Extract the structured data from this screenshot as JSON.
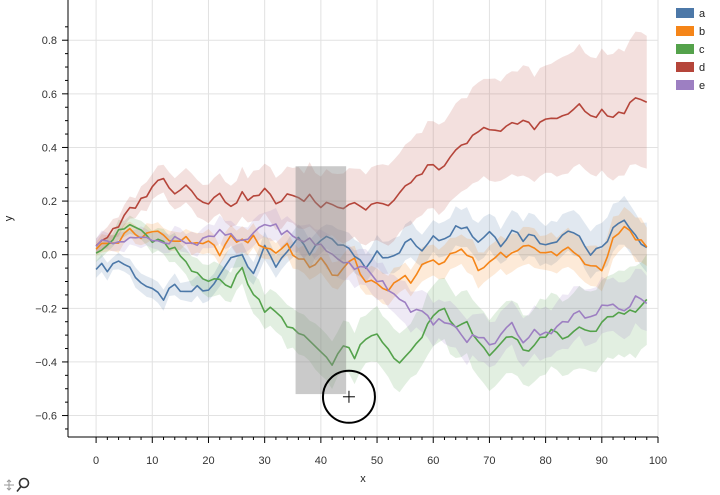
{
  "chart_data": {
    "type": "line",
    "title": "",
    "xlabel": "x",
    "ylabel": "y",
    "xlim": [
      -5,
      100
    ],
    "ylim": [
      -0.68,
      0.95
    ],
    "xticks": [
      0,
      10,
      20,
      30,
      40,
      50,
      60,
      70,
      80,
      90,
      100
    ],
    "yticks": [
      -0.6,
      -0.4,
      -0.2,
      0.0,
      0.2,
      0.4,
      0.6,
      0.8
    ],
    "ytick_labels": [
      "−0.6",
      "−0.4",
      "−0.2",
      "0.0",
      "0.2",
      "0.4",
      "0.6",
      "0.8"
    ],
    "grid": true,
    "legend_position": "top-right",
    "x_step": 1,
    "x_start": 0,
    "series": [
      {
        "name": "a",
        "color": "#4c78a8",
        "anchors": [
          [
            0,
            -0.04
          ],
          [
            2,
            -0.05
          ],
          [
            4,
            -0.02
          ],
          [
            6,
            -0.05
          ],
          [
            8,
            -0.1
          ],
          [
            10,
            -0.14
          ],
          [
            12,
            -0.16
          ],
          [
            14,
            -0.12
          ],
          [
            16,
            -0.15
          ],
          [
            18,
            -0.12
          ],
          [
            20,
            -0.14
          ],
          [
            22,
            -0.08
          ],
          [
            24,
            0.0
          ],
          [
            26,
            0.0
          ],
          [
            28,
            -0.06
          ],
          [
            30,
            0.02
          ],
          [
            32,
            -0.04
          ],
          [
            34,
            0.02
          ],
          [
            36,
            0.05
          ],
          [
            38,
            0.0
          ],
          [
            40,
            0.05
          ],
          [
            42,
            0.06
          ],
          [
            44,
            0.03
          ],
          [
            46,
            0.0
          ],
          [
            48,
            -0.04
          ],
          [
            50,
            0.02
          ],
          [
            52,
            -0.02
          ],
          [
            54,
            0.01
          ],
          [
            56,
            0.06
          ],
          [
            58,
            0.02
          ],
          [
            60,
            0.08
          ],
          [
            62,
            0.05
          ],
          [
            64,
            0.12
          ],
          [
            66,
            0.1
          ],
          [
            68,
            0.05
          ],
          [
            70,
            0.09
          ],
          [
            72,
            0.04
          ],
          [
            74,
            0.1
          ],
          [
            76,
            0.06
          ],
          [
            78,
            0.08
          ],
          [
            80,
            0.03
          ],
          [
            82,
            0.06
          ],
          [
            84,
            0.1
          ],
          [
            86,
            0.07
          ],
          [
            88,
            0.0
          ],
          [
            90,
            0.02
          ],
          [
            92,
            0.1
          ],
          [
            94,
            0.12
          ],
          [
            96,
            0.06
          ],
          [
            98,
            0.04
          ]
        ],
        "band": 0.06
      },
      {
        "name": "b",
        "color": "#f58518",
        "anchors": [
          [
            0,
            0.03
          ],
          [
            2,
            0.04
          ],
          [
            4,
            0.05
          ],
          [
            6,
            0.09
          ],
          [
            8,
            0.06
          ],
          [
            10,
            0.1
          ],
          [
            12,
            0.07
          ],
          [
            14,
            0.04
          ],
          [
            16,
            0.07
          ],
          [
            18,
            0.03
          ],
          [
            20,
            0.04
          ],
          [
            22,
            0.01
          ],
          [
            24,
            0.06
          ],
          [
            26,
            0.05
          ],
          [
            28,
            0.06
          ],
          [
            30,
            0.03
          ],
          [
            32,
            0.01
          ],
          [
            34,
            0.04
          ],
          [
            36,
            -0.02
          ],
          [
            38,
            -0.04
          ],
          [
            40,
            -0.02
          ],
          [
            42,
            -0.08
          ],
          [
            44,
            -0.05
          ],
          [
            46,
            -0.02
          ],
          [
            48,
            -0.1
          ],
          [
            50,
            -0.12
          ],
          [
            52,
            -0.13
          ],
          [
            54,
            -0.08
          ],
          [
            56,
            -0.1
          ],
          [
            58,
            -0.04
          ],
          [
            60,
            -0.02
          ],
          [
            62,
            -0.04
          ],
          [
            64,
            0.02
          ],
          [
            66,
            0.01
          ],
          [
            68,
            -0.06
          ],
          [
            70,
            -0.03
          ],
          [
            72,
            0.01
          ],
          [
            74,
            0.0
          ],
          [
            76,
            0.04
          ],
          [
            78,
            0.01
          ],
          [
            80,
            0.02
          ],
          [
            82,
            0.0
          ],
          [
            84,
            0.02
          ],
          [
            86,
            -0.01
          ],
          [
            88,
            -0.04
          ],
          [
            90,
            -0.05
          ],
          [
            92,
            0.05
          ],
          [
            94,
            0.1
          ],
          [
            96,
            0.06
          ],
          [
            98,
            0.03
          ]
        ],
        "band": 0.05
      },
      {
        "name": "c",
        "color": "#54a24b",
        "anchors": [
          [
            0,
            0.02
          ],
          [
            2,
            0.04
          ],
          [
            4,
            0.08
          ],
          [
            6,
            0.11
          ],
          [
            8,
            0.09
          ],
          [
            10,
            0.05
          ],
          [
            12,
            0.04
          ],
          [
            14,
            0.02
          ],
          [
            16,
            -0.04
          ],
          [
            18,
            -0.08
          ],
          [
            20,
            -0.1
          ],
          [
            22,
            -0.08
          ],
          [
            24,
            -0.12
          ],
          [
            26,
            -0.05
          ],
          [
            28,
            -0.15
          ],
          [
            30,
            -0.2
          ],
          [
            32,
            -0.2
          ],
          [
            34,
            -0.26
          ],
          [
            36,
            -0.3
          ],
          [
            38,
            -0.32
          ],
          [
            40,
            -0.36
          ],
          [
            42,
            -0.4
          ],
          [
            44,
            -0.34
          ],
          [
            46,
            -0.38
          ],
          [
            48,
            -0.32
          ],
          [
            50,
            -0.3
          ],
          [
            52,
            -0.35
          ],
          [
            54,
            -0.4
          ],
          [
            56,
            -0.37
          ],
          [
            58,
            -0.3
          ],
          [
            60,
            -0.24
          ],
          [
            62,
            -0.2
          ],
          [
            64,
            -0.28
          ],
          [
            66,
            -0.25
          ],
          [
            68,
            -0.33
          ],
          [
            70,
            -0.38
          ],
          [
            72,
            -0.34
          ],
          [
            74,
            -0.3
          ],
          [
            76,
            -0.36
          ],
          [
            78,
            -0.34
          ],
          [
            80,
            -0.3
          ],
          [
            82,
            -0.28
          ],
          [
            84,
            -0.32
          ],
          [
            86,
            -0.27
          ],
          [
            88,
            -0.3
          ],
          [
            90,
            -0.26
          ],
          [
            92,
            -0.22
          ],
          [
            94,
            -0.22
          ],
          [
            96,
            -0.2
          ],
          [
            98,
            -0.18
          ]
        ],
        "band": 0.14
      },
      {
        "name": "d",
        "color": "#b5453a",
        "anchors": [
          [
            0,
            0.04
          ],
          [
            2,
            0.07
          ],
          [
            4,
            0.1
          ],
          [
            6,
            0.17
          ],
          [
            8,
            0.2
          ],
          [
            10,
            0.26
          ],
          [
            12,
            0.28
          ],
          [
            14,
            0.24
          ],
          [
            16,
            0.26
          ],
          [
            18,
            0.22
          ],
          [
            20,
            0.2
          ],
          [
            22,
            0.22
          ],
          [
            24,
            0.19
          ],
          [
            26,
            0.22
          ],
          [
            28,
            0.21
          ],
          [
            30,
            0.24
          ],
          [
            32,
            0.19
          ],
          [
            34,
            0.23
          ],
          [
            36,
            0.2
          ],
          [
            38,
            0.22
          ],
          [
            40,
            0.18
          ],
          [
            42,
            0.2
          ],
          [
            44,
            0.18
          ],
          [
            46,
            0.2
          ],
          [
            48,
            0.17
          ],
          [
            50,
            0.2
          ],
          [
            52,
            0.18
          ],
          [
            54,
            0.22
          ],
          [
            56,
            0.28
          ],
          [
            58,
            0.3
          ],
          [
            60,
            0.34
          ],
          [
            62,
            0.32
          ],
          [
            64,
            0.38
          ],
          [
            66,
            0.42
          ],
          [
            68,
            0.45
          ],
          [
            70,
            0.48
          ],
          [
            72,
            0.46
          ],
          [
            74,
            0.48
          ],
          [
            76,
            0.5
          ],
          [
            78,
            0.47
          ],
          [
            80,
            0.52
          ],
          [
            82,
            0.5
          ],
          [
            84,
            0.53
          ],
          [
            86,
            0.55
          ],
          [
            88,
            0.52
          ],
          [
            90,
            0.53
          ],
          [
            92,
            0.51
          ],
          [
            94,
            0.54
          ],
          [
            96,
            0.57
          ],
          [
            98,
            0.58
          ]
        ],
        "band": 0.22
      },
      {
        "name": "e",
        "color": "#9d7fc2",
        "anchors": [
          [
            0,
            0.04
          ],
          [
            2,
            0.05
          ],
          [
            4,
            0.06
          ],
          [
            6,
            0.05
          ],
          [
            8,
            0.08
          ],
          [
            10,
            0.05
          ],
          [
            12,
            0.04
          ],
          [
            14,
            0.07
          ],
          [
            16,
            0.05
          ],
          [
            18,
            0.04
          ],
          [
            20,
            0.06
          ],
          [
            22,
            0.08
          ],
          [
            24,
            0.07
          ],
          [
            26,
            0.04
          ],
          [
            28,
            0.08
          ],
          [
            30,
            0.12
          ],
          [
            32,
            0.1
          ],
          [
            34,
            0.08
          ],
          [
            36,
            0.05
          ],
          [
            38,
            0.06
          ],
          [
            40,
            0.03
          ],
          [
            42,
            0.0
          ],
          [
            44,
            -0.02
          ],
          [
            46,
            -0.06
          ],
          [
            48,
            -0.04
          ],
          [
            50,
            -0.09
          ],
          [
            52,
            -0.12
          ],
          [
            54,
            -0.16
          ],
          [
            56,
            -0.2
          ],
          [
            58,
            -0.22
          ],
          [
            60,
            -0.26
          ],
          [
            62,
            -0.24
          ],
          [
            64,
            -0.28
          ],
          [
            66,
            -0.32
          ],
          [
            68,
            -0.3
          ],
          [
            70,
            -0.34
          ],
          [
            72,
            -0.3
          ],
          [
            74,
            -0.26
          ],
          [
            76,
            -0.32
          ],
          [
            78,
            -0.28
          ],
          [
            80,
            -0.3
          ],
          [
            82,
            -0.26
          ],
          [
            84,
            -0.24
          ],
          [
            86,
            -0.22
          ],
          [
            88,
            -0.24
          ],
          [
            90,
            -0.2
          ],
          [
            92,
            -0.18
          ],
          [
            94,
            -0.2
          ],
          [
            96,
            -0.16
          ],
          [
            98,
            -0.17
          ]
        ],
        "band": 0.08
      }
    ],
    "selection": {
      "x_range": [
        35.5,
        44.5
      ],
      "y_range": [
        -0.52,
        0.33
      ]
    },
    "cursor": {
      "x": 45,
      "y": -0.53
    }
  }
}
